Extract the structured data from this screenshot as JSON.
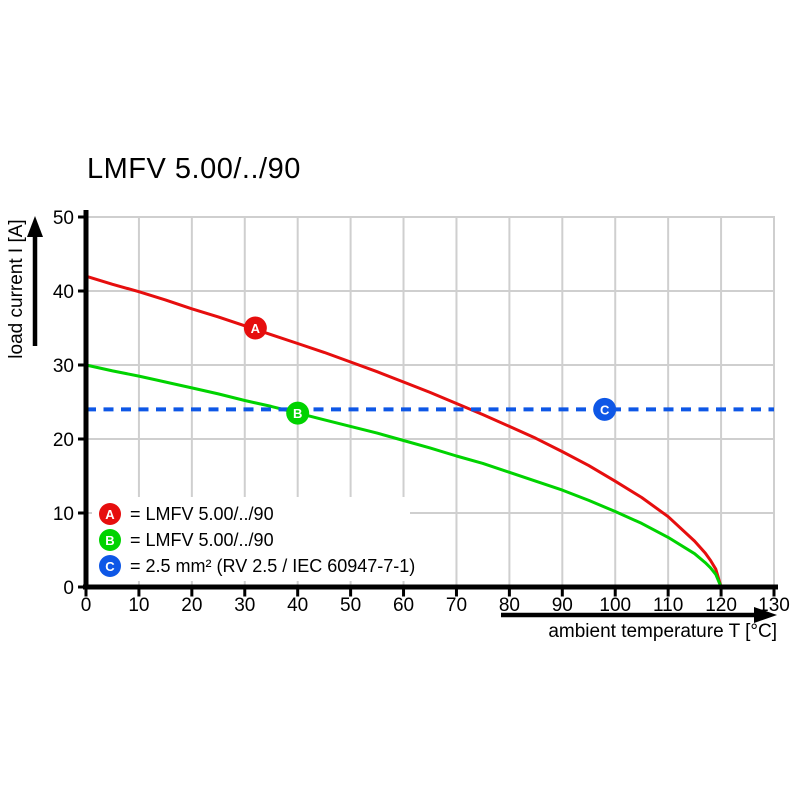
{
  "chart_data": {
    "type": "line",
    "title": "LMFV 5.00/../90",
    "xlabel": "ambient temperature T [°C]",
    "ylabel": "load current I [A]",
    "xlim": [
      0,
      130
    ],
    "ylim": [
      0,
      50
    ],
    "x_ticks": [
      0,
      10,
      20,
      30,
      40,
      50,
      60,
      70,
      80,
      90,
      100,
      110,
      120,
      130
    ],
    "y_ticks": [
      0,
      10,
      20,
      30,
      40,
      50
    ],
    "grid": true,
    "legend_position": "inside-bottom-left",
    "colors": {
      "curve_a_red": "#e60e0e",
      "curve_b_green": "#00d300",
      "limit_c_blue": "#0e57e6",
      "grid": "#cfcfcf",
      "axis": "#000000",
      "background": "#ffffff"
    },
    "series": [
      {
        "id": "A",
        "name": "LMFV 5.00/../90 (curve A)",
        "color": "#e60e0e",
        "line_style": "solid",
        "points": [
          [
            0,
            42.0
          ],
          [
            5,
            40.9
          ],
          [
            10,
            39.9
          ],
          [
            15,
            38.8
          ],
          [
            20,
            37.6
          ],
          [
            25,
            36.5
          ],
          [
            30,
            35.3
          ],
          [
            35,
            34.1
          ],
          [
            40,
            32.9
          ],
          [
            45,
            31.7
          ],
          [
            50,
            30.4
          ],
          [
            55,
            29.1
          ],
          [
            60,
            27.7
          ],
          [
            65,
            26.3
          ],
          [
            70,
            24.8
          ],
          [
            75,
            23.3
          ],
          [
            80,
            21.7
          ],
          [
            85,
            20.1
          ],
          [
            90,
            18.3
          ],
          [
            95,
            16.4
          ],
          [
            100,
            14.3
          ],
          [
            105,
            12.1
          ],
          [
            110,
            9.5
          ],
          [
            115,
            6.2
          ],
          [
            117,
            4.6
          ],
          [
            118,
            3.6
          ],
          [
            119,
            2.4
          ],
          [
            120,
            0
          ]
        ]
      },
      {
        "id": "B",
        "name": "LMFV 5.00/../90 (curve B)",
        "color": "#00d300",
        "line_style": "solid",
        "points": [
          [
            0,
            30.0
          ],
          [
            5,
            29.2
          ],
          [
            10,
            28.5
          ],
          [
            15,
            27.7
          ],
          [
            20,
            26.9
          ],
          [
            25,
            26.1
          ],
          [
            30,
            25.2
          ],
          [
            35,
            24.4
          ],
          [
            40,
            23.5
          ],
          [
            45,
            22.6
          ],
          [
            50,
            21.7
          ],
          [
            55,
            20.8
          ],
          [
            60,
            19.8
          ],
          [
            65,
            18.8
          ],
          [
            70,
            17.7
          ],
          [
            75,
            16.7
          ],
          [
            80,
            15.5
          ],
          [
            85,
            14.3
          ],
          [
            90,
            13.1
          ],
          [
            95,
            11.7
          ],
          [
            100,
            10.2
          ],
          [
            105,
            8.6
          ],
          [
            110,
            6.7
          ],
          [
            115,
            4.5
          ],
          [
            117,
            3.3
          ],
          [
            118,
            2.6
          ],
          [
            119,
            1.7
          ],
          [
            120,
            0
          ]
        ]
      },
      {
        "id": "C",
        "name": "2.5 mm² wire limit (RV 2.5 / IEC 60947-7-1)",
        "color": "#0e57e6",
        "line_style": "dashed",
        "points": [
          [
            0,
            24
          ],
          [
            130,
            24
          ]
        ]
      }
    ],
    "markers": [
      {
        "letter": "A",
        "x": 32,
        "y": 35,
        "color": "#e60e0e"
      },
      {
        "letter": "B",
        "x": 40,
        "y": 23.5,
        "color": "#00d300"
      },
      {
        "letter": "C",
        "x": 98,
        "y": 24,
        "color": "#0e57e6"
      }
    ],
    "legend": [
      {
        "letter": "A",
        "color": "#e60e0e",
        "label": "= LMFV 5.00/../90"
      },
      {
        "letter": "B",
        "color": "#00d300",
        "label": "= LMFV 5.00/../90"
      },
      {
        "letter": "C",
        "color": "#0e57e6",
        "label": "= 2.5 mm² (RV 2.5 / IEC 60947-7-1)"
      }
    ]
  }
}
